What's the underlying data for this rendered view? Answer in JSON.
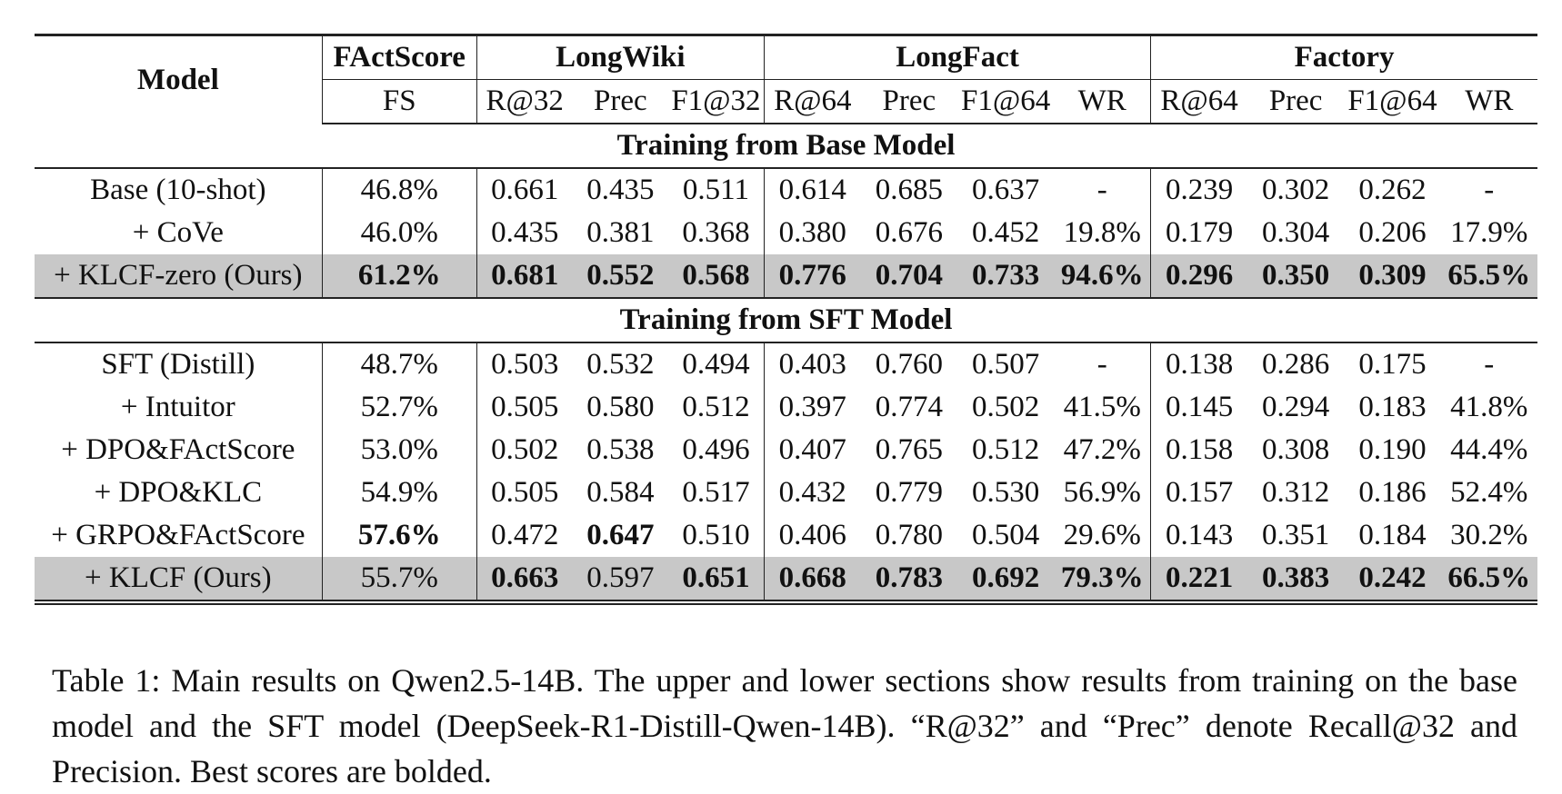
{
  "table": {
    "model_header": "Model",
    "groups": [
      {
        "name": "FActScore",
        "subheaders": [
          "FS"
        ]
      },
      {
        "name": "LongWiki",
        "subheaders": [
          "R@32",
          "Prec",
          "F1@32"
        ]
      },
      {
        "name": "LongFact",
        "subheaders": [
          "R@64",
          "Prec",
          "F1@64",
          "WR"
        ]
      },
      {
        "name": "Factory",
        "subheaders": [
          "R@64",
          "Prec",
          "F1@64",
          "WR"
        ]
      }
    ],
    "sections": [
      {
        "title": "Training from Base Model",
        "rows": [
          {
            "cells": [
              "Base (10-shot)",
              "46.8%",
              "0.661",
              "0.435",
              "0.511",
              "0.614",
              "0.685",
              "0.637",
              "-",
              "0.239",
              "0.302",
              "0.262",
              "-"
            ]
          },
          {
            "cells": [
              "+ CoVe",
              "46.0%",
              "0.435",
              "0.381",
              "0.368",
              "0.380",
              "0.676",
              "0.452",
              "19.8%",
              "0.179",
              "0.304",
              "0.206",
              "17.9%"
            ]
          },
          {
            "highlight": true,
            "cells": [
              "+ KLCF-zero (Ours)",
              {
                "text": "61.2%",
                "bold": true
              },
              {
                "text": "0.681",
                "bold": true
              },
              {
                "text": "0.552",
                "bold": true
              },
              {
                "text": "0.568",
                "bold": true
              },
              {
                "text": "0.776",
                "bold": true
              },
              {
                "text": "0.704",
                "bold": true
              },
              {
                "text": "0.733",
                "bold": true
              },
              {
                "text": "94.6%",
                "bold": true
              },
              {
                "text": "0.296",
                "bold": true
              },
              {
                "text": "0.350",
                "bold": true
              },
              {
                "text": "0.309",
                "bold": true
              },
              {
                "text": "65.5%",
                "bold": true
              }
            ]
          }
        ]
      },
      {
        "title": "Training from SFT Model",
        "rows": [
          {
            "cells": [
              "SFT (Distill)",
              "48.7%",
              "0.503",
              "0.532",
              "0.494",
              "0.403",
              "0.760",
              "0.507",
              "-",
              "0.138",
              "0.286",
              "0.175",
              "-"
            ]
          },
          {
            "cells": [
              "+ Intuitor",
              "52.7%",
              "0.505",
              "0.580",
              "0.512",
              "0.397",
              "0.774",
              "0.502",
              "41.5%",
              "0.145",
              "0.294",
              "0.183",
              "41.8%"
            ]
          },
          {
            "cells": [
              "+ DPO&FActScore",
              "53.0%",
              "0.502",
              "0.538",
              "0.496",
              "0.407",
              "0.765",
              "0.512",
              "47.2%",
              "0.158",
              "0.308",
              "0.190",
              "44.4%"
            ]
          },
          {
            "cells": [
              "+ DPO&KLC",
              "54.9%",
              "0.505",
              "0.584",
              "0.517",
              "0.432",
              "0.779",
              "0.530",
              "56.9%",
              "0.157",
              "0.312",
              "0.186",
              "52.4%"
            ]
          },
          {
            "cells": [
              "+ GRPO&FActScore",
              {
                "text": "57.6%",
                "bold": true
              },
              "0.472",
              {
                "text": "0.647",
                "bold": true
              },
              "0.510",
              "0.406",
              "0.780",
              "0.504",
              "29.6%",
              "0.143",
              "0.351",
              "0.184",
              "30.2%"
            ]
          },
          {
            "highlight": true,
            "cells": [
              "+ KLCF (Ours)",
              "55.7%",
              {
                "text": "0.663",
                "bold": true
              },
              "0.597",
              {
                "text": "0.651",
                "bold": true
              },
              {
                "text": "0.668",
                "bold": true
              },
              {
                "text": "0.783",
                "bold": true
              },
              {
                "text": "0.692",
                "bold": true
              },
              {
                "text": "79.3%",
                "bold": true
              },
              {
                "text": "0.221",
                "bold": true
              },
              {
                "text": "0.383",
                "bold": true
              },
              {
                "text": "0.242",
                "bold": true
              },
              {
                "text": "66.5%",
                "bold": true
              }
            ]
          }
        ]
      }
    ]
  },
  "caption": "Table 1: Main results on Qwen2.5-14B. The upper and lower sections show results from training on the base model and the SFT model (DeepSeek-R1-Distill-Qwen-14B). “R@32” and “Prec” denote Recall@32 and Precision. Best scores are bolded."
}
